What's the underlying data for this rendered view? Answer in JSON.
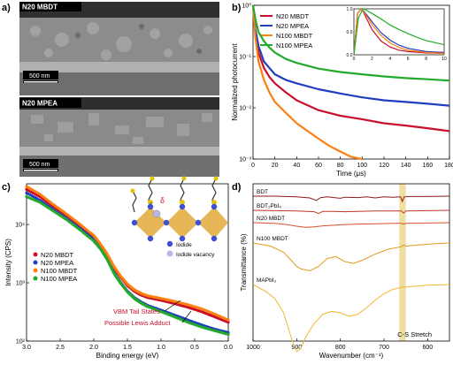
{
  "panels": {
    "a": {
      "letter": "a)",
      "sem_images": [
        {
          "label": "N20 MBDT",
          "scalebar": "500 nm"
        },
        {
          "label": "N20 MPEA",
          "scalebar": "500 nm"
        }
      ]
    },
    "b": {
      "letter": "b)"
    },
    "c": {
      "letter": "c)",
      "legend_iodide": "Iodide",
      "legend_vacancy": "Iodide vacancy",
      "delta_minus": "δ",
      "delta_plus": "δ",
      "ann1": "VBM Tail States",
      "ann2": "Possible Lewis Adduct"
    },
    "d": {
      "letter": "d)",
      "band_label": "C-S Stretch"
    }
  },
  "colors": {
    "red": "#c8102e",
    "blue": "#1f3fbf",
    "orange": "#ff7f0e",
    "green": "#22aa2a",
    "ftir_dark": "#8b1a1a",
    "ftir_mid": "#c0392b",
    "ftir_light": "#d4502a",
    "ftir_orange": "#e39a1e",
    "ftir_yellow": "#f2b632",
    "band": "#e8d27a"
  },
  "chart_data": [
    {
      "type": "line",
      "panel": "b",
      "xlabel": "Time (μs)",
      "ylabel": "Normalized photocurrent",
      "xlim": [
        0,
        180
      ],
      "ylim": [
        0.001,
        1
      ],
      "yscale": "log",
      "xticks": [
        "0",
        "20",
        "40",
        "60",
        "80",
        "100",
        "120",
        "140",
        "160",
        "180"
      ],
      "yticks": [
        "10⁻³",
        "10⁻²",
        "10⁻¹",
        "10⁰"
      ],
      "legend_position": "top-left",
      "series": [
        {
          "name": "N20 MBDT",
          "color": "#c8102e",
          "x": [
            0,
            2,
            5,
            10,
            15,
            20,
            30,
            40,
            60,
            80,
            100,
            120,
            140,
            160,
            180
          ],
          "y": [
            1,
            0.3,
            0.12,
            0.06,
            0.04,
            0.03,
            0.02,
            0.014,
            0.009,
            0.007,
            0.006,
            0.005,
            0.0045,
            0.004,
            0.0035
          ]
        },
        {
          "name": "N20 MPEA",
          "color": "#1f3fbf",
          "x": [
            0,
            2,
            5,
            10,
            15,
            20,
            30,
            40,
            60,
            80,
            100,
            120,
            140,
            160,
            180
          ],
          "y": [
            1,
            0.35,
            0.16,
            0.08,
            0.06,
            0.045,
            0.035,
            0.03,
            0.023,
            0.019,
            0.016,
            0.014,
            0.013,
            0.012,
            0.011
          ]
        },
        {
          "name": "N100 MBDT",
          "color": "#ff7f0e",
          "x": [
            0,
            2,
            5,
            10,
            15,
            20,
            30,
            40,
            50,
            60,
            70,
            80,
            90,
            100
          ],
          "y": [
            1,
            0.25,
            0.08,
            0.035,
            0.02,
            0.013,
            0.008,
            0.005,
            0.0035,
            0.0025,
            0.0018,
            0.0014,
            0.0011,
            0.001
          ]
        },
        {
          "name": "N100 MPEA",
          "color": "#22aa2a",
          "x": [
            0,
            2,
            5,
            10,
            15,
            20,
            30,
            40,
            60,
            80,
            100,
            120,
            140,
            160,
            180
          ],
          "y": [
            1,
            0.55,
            0.3,
            0.2,
            0.15,
            0.12,
            0.09,
            0.075,
            0.058,
            0.05,
            0.045,
            0.041,
            0.038,
            0.036,
            0.034
          ]
        }
      ],
      "inset": {
        "xlim": [
          0,
          10
        ],
        "ylim": [
          0,
          1
        ],
        "xticks": [
          "0",
          "2",
          "4",
          "6",
          "8",
          "10"
        ],
        "yticks": [
          "0.0",
          "0.5",
          "1.0"
        ],
        "series": [
          {
            "name": "N20 MBDT",
            "color": "#c8102e",
            "x": [
              0,
              0.4,
              0.8,
              1,
              1.5,
              2,
              3,
              4,
              5,
              6,
              8,
              10
            ],
            "y": [
              0,
              0.9,
              1.0,
              0.95,
              0.75,
              0.55,
              0.3,
              0.17,
              0.1,
              0.07,
              0.04,
              0.03
            ]
          },
          {
            "name": "N20 MPEA",
            "color": "#1f3fbf",
            "x": [
              0,
              0.4,
              0.8,
              1,
              1.5,
              2,
              3,
              4,
              5,
              6,
              8,
              10
            ],
            "y": [
              0,
              0.9,
              1.0,
              0.97,
              0.85,
              0.72,
              0.48,
              0.32,
              0.21,
              0.14,
              0.07,
              0.05
            ]
          },
          {
            "name": "N100 MBDT",
            "color": "#ff7f0e",
            "x": [
              0,
              0.4,
              0.8,
              1,
              1.5,
              2,
              3,
              4,
              5,
              6,
              8,
              10
            ],
            "y": [
              0,
              0.9,
              1.0,
              0.96,
              0.82,
              0.66,
              0.42,
              0.26,
              0.16,
              0.1,
              0.05,
              0.03
            ]
          },
          {
            "name": "N100 MPEA",
            "color": "#22aa2a",
            "x": [
              0,
              0.5,
              1,
              1.2,
              2,
              3,
              4,
              5,
              6,
              7,
              8,
              10
            ],
            "y": [
              0,
              0.8,
              1.0,
              0.99,
              0.9,
              0.78,
              0.65,
              0.55,
              0.46,
              0.38,
              0.31,
              0.22
            ]
          }
        ]
      }
    },
    {
      "type": "scatter",
      "panel": "c",
      "xlabel": "Binding energy (eV)",
      "ylabel": "Intensity (CPS)",
      "xlim": [
        3.0,
        0.0
      ],
      "ylim": [
        100,
        50000
      ],
      "yscale": "log",
      "xticks": [
        "3.0",
        "2.5",
        "2.0",
        "1.5",
        "1.0",
        "0.5",
        "0.0"
      ],
      "yticks": [
        "10²",
        "10³",
        "10⁴"
      ],
      "legend_position": "left",
      "series": [
        {
          "name": "N20 MBDT",
          "color": "#c8102e",
          "x": [
            3.0,
            2.8,
            2.6,
            2.4,
            2.2,
            2.0,
            1.9,
            1.8,
            1.7,
            1.6,
            1.5,
            1.4,
            1.3,
            1.2,
            1.0,
            0.8,
            0.6,
            0.4,
            0.2,
            0.0
          ],
          "y": [
            40000,
            30000,
            20000,
            14000,
            9500,
            6000,
            4300,
            2900,
            1800,
            1250,
            900,
            720,
            620,
            560,
            500,
            440,
            380,
            320,
            260,
            210
          ]
        },
        {
          "name": "N20 MPEA",
          "color": "#1f3fbf",
          "x": [
            3.0,
            2.8,
            2.6,
            2.4,
            2.2,
            2.0,
            1.9,
            1.8,
            1.7,
            1.6,
            1.5,
            1.4,
            1.3,
            1.2,
            1.0,
            0.8,
            0.6,
            0.4,
            0.2,
            0.0
          ],
          "y": [
            35000,
            26000,
            18000,
            12500,
            8500,
            5500,
            4000,
            2600,
            1500,
            1000,
            720,
            560,
            470,
            410,
            340,
            280,
            230,
            190,
            160,
            140
          ]
        },
        {
          "name": "N100 MBDT",
          "color": "#ff7f0e",
          "x": [
            3.0,
            2.8,
            2.6,
            2.4,
            2.2,
            2.0,
            1.9,
            1.8,
            1.7,
            1.6,
            1.5,
            1.4,
            1.3,
            1.2,
            1.0,
            0.8,
            0.6,
            0.4,
            0.2,
            0.0
          ],
          "y": [
            45000,
            33000,
            22000,
            15000,
            10000,
            6500,
            4600,
            3100,
            1900,
            1300,
            950,
            760,
            660,
            600,
            540,
            480,
            420,
            360,
            290,
            230
          ]
        },
        {
          "name": "N100 MPEA",
          "color": "#22aa2a",
          "x": [
            3.0,
            2.8,
            2.6,
            2.4,
            2.2,
            2.0,
            1.9,
            1.8,
            1.7,
            1.6,
            1.5,
            1.4,
            1.3,
            1.2,
            1.0,
            0.8,
            0.6,
            0.4,
            0.2,
            0.0
          ],
          "y": [
            30000,
            24000,
            17000,
            12000,
            8000,
            5200,
            3800,
            2500,
            1450,
            980,
            700,
            540,
            450,
            390,
            320,
            260,
            210,
            175,
            150,
            130
          ]
        }
      ]
    },
    {
      "type": "line",
      "panel": "d",
      "xlabel": "Wavenumber (cm⁻¹)",
      "ylabel": "Transmittance (%)",
      "xlim": [
        1000,
        550
      ],
      "xticks": [
        "1000",
        "900",
        "800",
        "700",
        "600"
      ],
      "highlight_band": [
        665,
        650
      ],
      "series": [
        {
          "name": "BDT",
          "color": "#8b1a1a",
          "x": [
            1000,
            950,
            900,
            870,
            855,
            845,
            830,
            800,
            790,
            760,
            740,
            720,
            700,
            680,
            662,
            658,
            654,
            640,
            600,
            550
          ],
          "y": [
            0.0,
            0.0,
            -0.02,
            -0.05,
            -0.12,
            -0.04,
            -0.02,
            -0.06,
            -0.03,
            -0.04,
            -0.02,
            -0.05,
            -0.02,
            -0.03,
            -0.02,
            -0.15,
            -0.02,
            -0.01,
            -0.01,
            0.0
          ]
        },
        {
          "name": "BDT₂PbI₄",
          "color": "#c0392b",
          "x": [
            1000,
            950,
            900,
            860,
            850,
            840,
            820,
            790,
            760,
            720,
            700,
            660,
            655,
            650,
            600,
            550
          ],
          "y": [
            0.0,
            -0.01,
            -0.02,
            -0.04,
            -0.09,
            -0.03,
            -0.03,
            -0.04,
            -0.03,
            -0.02,
            -0.02,
            -0.02,
            -0.08,
            -0.02,
            -0.01,
            0.0
          ]
        },
        {
          "name": "N20 MBDT",
          "color": "#d4502a",
          "x": [
            1000,
            950,
            920,
            900,
            880,
            860,
            840,
            800,
            760,
            720,
            680,
            660,
            655,
            650,
            600,
            550
          ],
          "y": [
            0.0,
            -0.02,
            -0.06,
            -0.1,
            -0.13,
            -0.12,
            -0.09,
            -0.06,
            -0.04,
            -0.03,
            -0.02,
            -0.02,
            -0.04,
            -0.02,
            -0.01,
            0.0
          ]
        },
        {
          "name": "N100 MBDT",
          "color": "#e39a1e",
          "x": [
            1000,
            960,
            930,
            910,
            900,
            890,
            870,
            850,
            830,
            810,
            790,
            770,
            750,
            720,
            690,
            660,
            655,
            650,
            620,
            580,
            550
          ],
          "y": [
            0.0,
            -0.05,
            -0.15,
            -0.3,
            -0.38,
            -0.42,
            -0.45,
            -0.38,
            -0.25,
            -0.22,
            -0.3,
            -0.33,
            -0.28,
            -0.18,
            -0.1,
            -0.06,
            -0.03,
            -0.05,
            -0.03,
            -0.01,
            0.0
          ]
        },
        {
          "name": "MAPbI₃",
          "color": "#f2b632",
          "x": [
            1000,
            970,
            950,
            930,
            920,
            910,
            900,
            890,
            880,
            860,
            840,
            820,
            800,
            780,
            760,
            740,
            720,
            700,
            680,
            660,
            640,
            600,
            550
          ],
          "y": [
            0.0,
            -0.1,
            -0.2,
            -0.4,
            -0.6,
            -0.8,
            -0.95,
            -0.9,
            -0.75,
            -0.55,
            -0.42,
            -0.38,
            -0.4,
            -0.45,
            -0.42,
            -0.33,
            -0.22,
            -0.13,
            -0.07,
            -0.04,
            -0.03,
            -0.01,
            0.0
          ]
        }
      ]
    }
  ]
}
